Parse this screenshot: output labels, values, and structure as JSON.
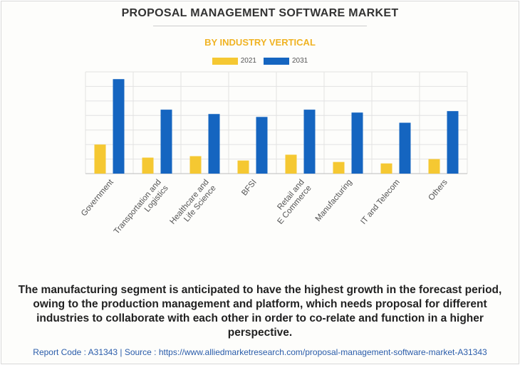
{
  "header": {
    "title": "PROPOSAL MANAGEMENT SOFTWARE MARKET",
    "subtitle": "BY INDUSTRY VERTICAL"
  },
  "legend": {
    "items": [
      {
        "label": "2021",
        "color": "#f5c832"
      },
      {
        "label": "2031",
        "color": "#1565c0"
      }
    ]
  },
  "chart_data": {
    "type": "bar",
    "title": "PROPOSAL MANAGEMENT SOFTWARE MARKET",
    "subtitle": "BY INDUSTRY VERTICAL",
    "categories": [
      [
        "Government"
      ],
      [
        "Transportation and",
        "Logistics"
      ],
      [
        "Healthcare and",
        "Life Science"
      ],
      [
        "BFSI"
      ],
      [
        "Retail and",
        "E Commerce"
      ],
      [
        "Manufacturing"
      ],
      [
        "IT and Telecom"
      ],
      [
        "Others"
      ]
    ],
    "series": [
      {
        "name": "2021",
        "color": "#f5c832",
        "values": [
          2.0,
          1.1,
          1.2,
          0.9,
          1.3,
          0.8,
          0.7,
          1.0
        ]
      },
      {
        "name": "2031",
        "color": "#1565c0",
        "values": [
          6.5,
          4.4,
          4.1,
          3.9,
          4.4,
          4.2,
          3.5,
          4.3
        ]
      }
    ],
    "ylim": [
      0,
      7
    ],
    "grid": true,
    "legend_position": "top-center"
  },
  "caption": "The manufacturing segment is anticipated to have the highest growth in the forecast period, owing to the production management and platform, which needs proposal for different industries to collaborate with each other in order to co-relate and function in a higher perspective.",
  "footer": "Report Code : A31343  |  Source : https://www.alliedmarketresearch.com/proposal-management-software-market-A31343"
}
